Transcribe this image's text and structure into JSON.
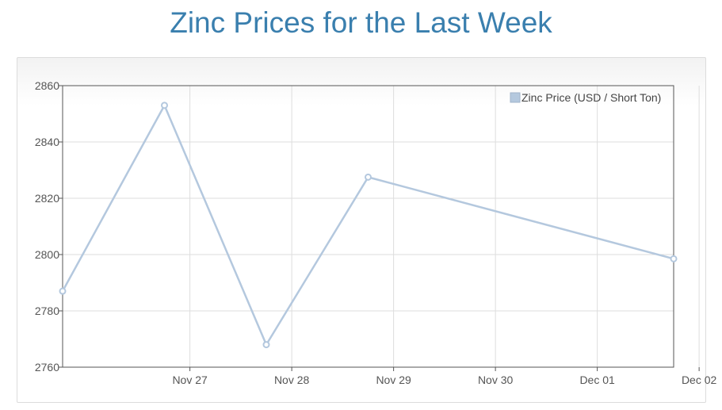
{
  "page": {
    "title": "Zinc Prices for the Last Week"
  },
  "chart_data": {
    "type": "line",
    "title": "Zinc Prices for the Last Week",
    "xlabel": "",
    "ylabel": "",
    "x_ticks": [
      "Nov 27",
      "Nov 28",
      "Nov 29",
      "Nov 30",
      "Dec 01",
      "Dec 02"
    ],
    "ylim": [
      2760,
      2860
    ],
    "y_ticks": [
      2760,
      2780,
      2800,
      2820,
      2840,
      2860
    ],
    "grid": true,
    "legend_position": "top-right",
    "series": [
      {
        "name": "Zinc Price (USD / Short Ton)",
        "color": "#b4c8de",
        "x": [
          "Nov 26",
          "Nov 27",
          "Nov 28",
          "Nov 29",
          "Dec 02"
        ],
        "y": [
          2787,
          2853,
          2768,
          2827.5,
          2798.5
        ]
      }
    ]
  }
}
